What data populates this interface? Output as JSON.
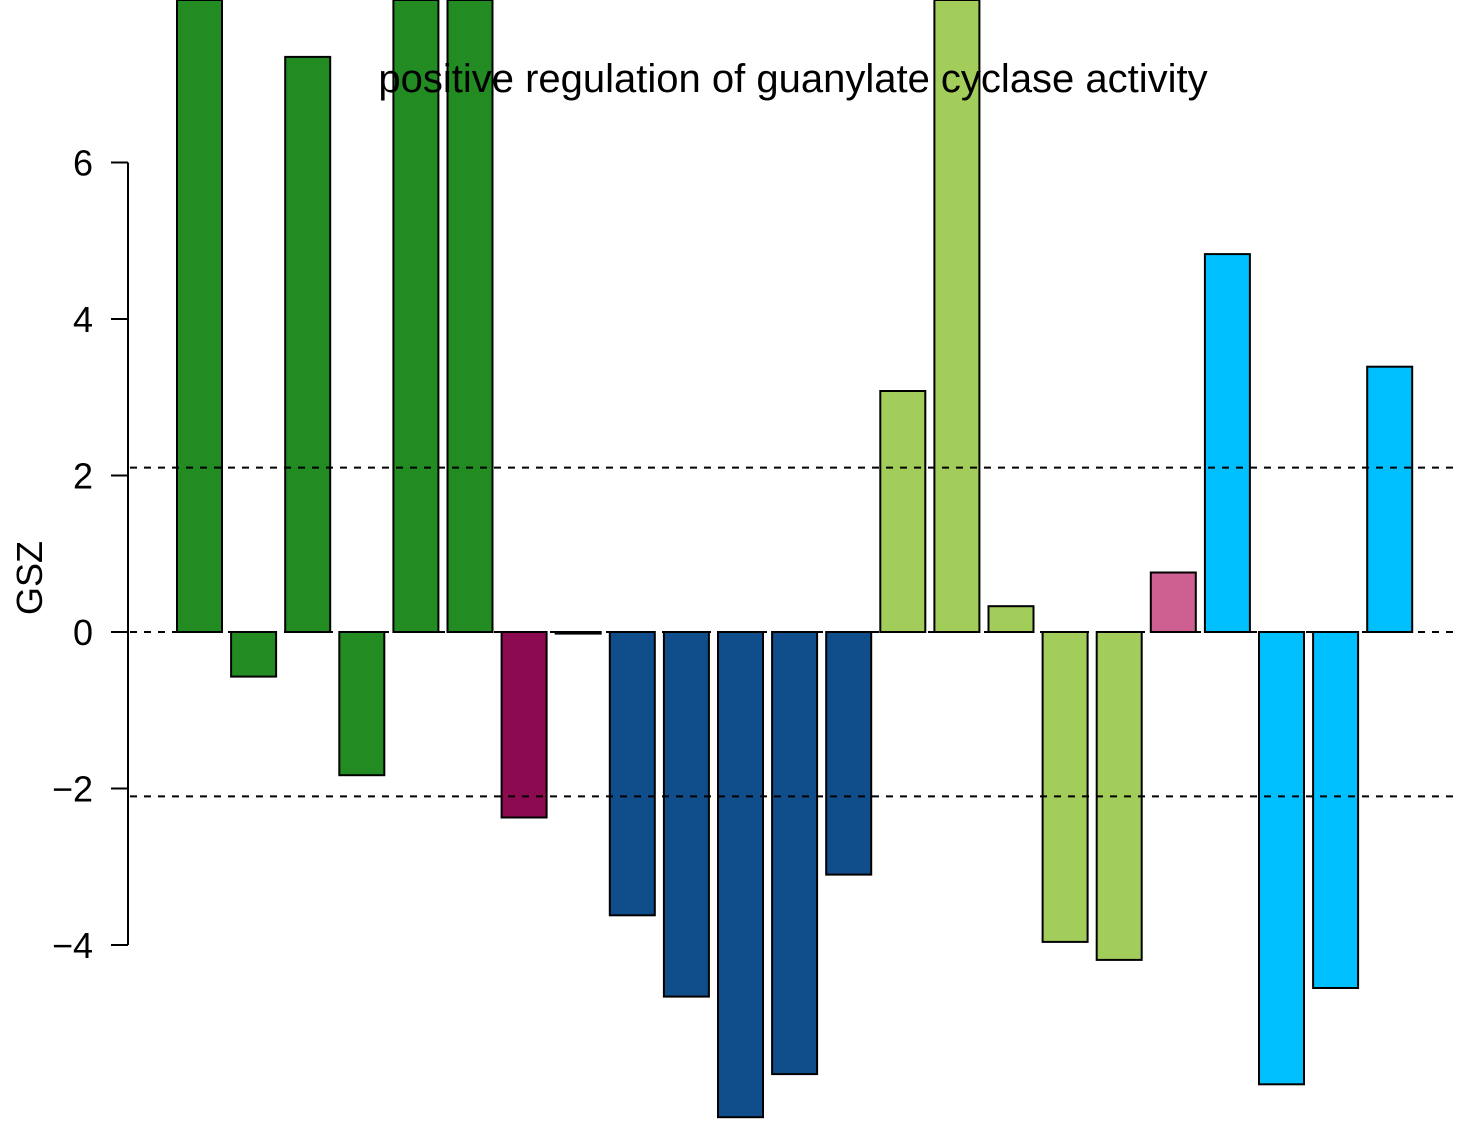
{
  "chart_data": {
    "type": "bar",
    "title": "positive regulation of guanylate cyclase activity",
    "xlabel": "",
    "ylabel": "GSZ",
    "ylim": [
      -6.2,
      8.1
    ],
    "yticks": [
      -4,
      -2,
      0,
      2,
      4,
      6
    ],
    "ytick_labels": [
      "−4",
      "−2",
      "0",
      "2",
      "4",
      "6"
    ],
    "threshold_lines": [
      2.1,
      0,
      -2.1
    ],
    "grid": false,
    "legend": "none",
    "values": [
      8.1,
      -0.57,
      7.35,
      -1.83,
      8.1,
      8.1,
      -2.37,
      -0.02,
      -3.62,
      -4.66,
      -6.2,
      -5.65,
      -3.1,
      3.08,
      8.1,
      0.33,
      -3.96,
      -4.19,
      0.76,
      4.83,
      -5.78,
      -4.55,
      3.39
    ],
    "colors": [
      "#228B22",
      "#228B22",
      "#228B22",
      "#228B22",
      "#228B22",
      "#228B22",
      "#8B0A50",
      "#8B0A50",
      "#104E8B",
      "#104E8B",
      "#104E8B",
      "#104E8B",
      "#104E8B",
      "#A2CD5A",
      "#A2CD5A",
      "#A2CD5A",
      "#A2CD5A",
      "#A2CD5A",
      "#CD6090",
      "#00BFFF",
      "#00BFFF",
      "#00BFFF",
      "#00BFFF"
    ]
  }
}
